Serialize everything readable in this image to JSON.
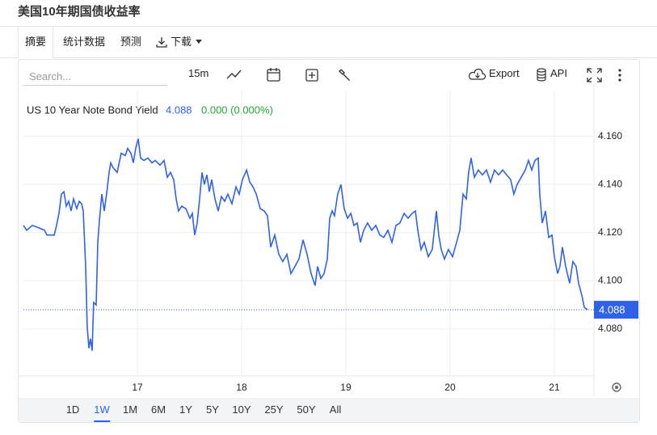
{
  "header": {
    "title": "美国10年期国债收益率"
  },
  "tabs": [
    "摘要",
    "统计数据",
    "预测",
    "下载"
  ],
  "toolbar": {
    "search_placeholder": "Search...",
    "interval": "15m",
    "export": "Export",
    "api": "API"
  },
  "ranges": [
    "1D",
    "1W",
    "1M",
    "6M",
    "1Y",
    "5Y",
    "10Y",
    "25Y",
    "50Y",
    "All"
  ],
  "selected_range": "1W",
  "chart_data": {
    "type": "line",
    "last_value": 4.088,
    "change": "0.000 (0.000%)",
    "series": [
      {
        "name": "US 10 Year Note Bond Yield",
        "color": "#2f62e6",
        "values": [
          4.123,
          4.121,
          4.123,
          4.122,
          4.121,
          4.119,
          4.119,
          4.119,
          4.123,
          4.128,
          4.136,
          4.137,
          4.131,
          4.133,
          4.129,
          4.134,
          4.13,
          4.133,
          4.132,
          4.129,
          4.106,
          4.081,
          4.072,
          4.076,
          4.071,
          4.091,
          4.09,
          4.116,
          4.125,
          4.136,
          4.129,
          4.136,
          4.145,
          4.149,
          4.147,
          4.145,
          4.153,
          4.152,
          4.155,
          4.153,
          4.149,
          4.155,
          4.159,
          4.151,
          4.15,
          4.151,
          4.149,
          4.15,
          4.148,
          4.15,
          4.143,
          4.145,
          4.142,
          4.134,
          4.129,
          4.131,
          4.13,
          4.126,
          4.128,
          4.119,
          4.124,
          4.134,
          4.145,
          4.14,
          4.144,
          4.137,
          4.142,
          4.134,
          4.129,
          4.135,
          4.133,
          4.136,
          4.132,
          4.139,
          4.136,
          4.142,
          4.146,
          4.141,
          4.139,
          4.136,
          4.13,
          4.129,
          4.127,
          4.114,
          4.119,
          4.111,
          4.108,
          4.111,
          4.103,
          4.106,
          4.109,
          4.117,
          4.111,
          4.103,
          4.098,
          4.106,
          4.101,
          4.103,
          4.109,
          4.126,
          4.129,
          4.127,
          4.136,
          4.14,
          4.13,
          4.126,
          4.128,
          4.123,
          4.124,
          4.116,
          4.121,
          4.124,
          4.121,
          4.123,
          4.119,
          4.118,
          4.121,
          4.116,
          4.123,
          4.124,
          4.128,
          4.126,
          4.128,
          4.129,
          4.121,
          4.113,
          4.116,
          4.11,
          4.113,
          4.129,
          4.119,
          4.113,
          4.109,
          4.113,
          4.11,
          4.116,
          4.121,
          4.136,
          4.134,
          4.145,
          4.151,
          4.143,
          4.146,
          4.144,
          4.146,
          4.141,
          4.146,
          4.144,
          4.146,
          4.144,
          4.142,
          4.136,
          4.14,
          4.143,
          4.146,
          4.15,
          4.146,
          4.15,
          4.151,
          4.136,
          4.124,
          4.129,
          4.118,
          4.119,
          4.11,
          4.103,
          4.106,
          4.114,
          4.106,
          4.099,
          4.108,
          4.106,
          4.099,
          4.094,
          4.089,
          4.088
        ]
      }
    ],
    "x": [
      15.907,
      15.938,
      15.992,
      16.054,
      16.109,
      16.132,
      16.171,
      16.202,
      16.225,
      16.248,
      16.271,
      16.295,
      16.318,
      16.341,
      16.364,
      16.388,
      16.419,
      16.442,
      16.465,
      16.481,
      16.504,
      16.519,
      16.535,
      16.55,
      16.566,
      16.581,
      16.605,
      16.62,
      16.636,
      16.659,
      16.682,
      16.705,
      16.729,
      16.744,
      16.767,
      16.806,
      16.845,
      16.884,
      16.907,
      16.938,
      16.961,
      16.984,
      17.008,
      17.031,
      17.062,
      17.101,
      17.14,
      17.171,
      17.217,
      17.256,
      17.287,
      17.318,
      17.349,
      17.372,
      17.395,
      17.426,
      17.465,
      17.504,
      17.527,
      17.55,
      17.574,
      17.597,
      17.62,
      17.643,
      17.667,
      17.69,
      17.713,
      17.744,
      17.775,
      17.806,
      17.837,
      17.868,
      17.907,
      17.946,
      17.977,
      18.008,
      18.047,
      18.078,
      18.109,
      18.14,
      18.178,
      18.217,
      18.248,
      18.279,
      18.318,
      18.357,
      18.395,
      18.434,
      18.473,
      18.512,
      18.55,
      18.589,
      18.628,
      18.667,
      18.705,
      18.729,
      18.76,
      18.791,
      18.822,
      18.845,
      18.868,
      18.891,
      18.922,
      18.953,
      18.984,
      19.016,
      19.047,
      19.078,
      19.109,
      19.14,
      19.171,
      19.209,
      19.248,
      19.287,
      19.326,
      19.364,
      19.403,
      19.442,
      19.481,
      19.519,
      19.558,
      19.597,
      19.636,
      19.667,
      19.69,
      19.721,
      19.752,
      19.791,
      19.829,
      19.868,
      19.891,
      19.915,
      19.946,
      19.984,
      20.023,
      20.062,
      20.093,
      20.124,
      20.155,
      20.178,
      20.202,
      20.233,
      20.271,
      20.31,
      20.349,
      20.388,
      20.426,
      20.465,
      20.504,
      20.543,
      20.581,
      20.612,
      20.643,
      20.682,
      20.721,
      20.752,
      20.783,
      20.814,
      20.845,
      20.86,
      20.884,
      20.915,
      20.946,
      20.977,
      21.0,
      21.031,
      21.054,
      21.078,
      21.109,
      21.147,
      21.178,
      21.209,
      21.233,
      21.264,
      21.287,
      21.318
    ],
    "xlim": [
      15.907,
      21.38
    ],
    "xticks": [
      17,
      18,
      19,
      20,
      21
    ],
    "ylim": [
      4.0605,
      4.179
    ],
    "yticks": [
      {
        "value": 4.08,
        "label": "4.080"
      },
      {
        "value": 4.1,
        "label": "4.100"
      },
      {
        "value": 4.12,
        "label": "4.120"
      },
      {
        "value": 4.14,
        "label": "4.140"
      },
      {
        "value": 4.16,
        "label": "4.160"
      }
    ],
    "grid": true
  }
}
